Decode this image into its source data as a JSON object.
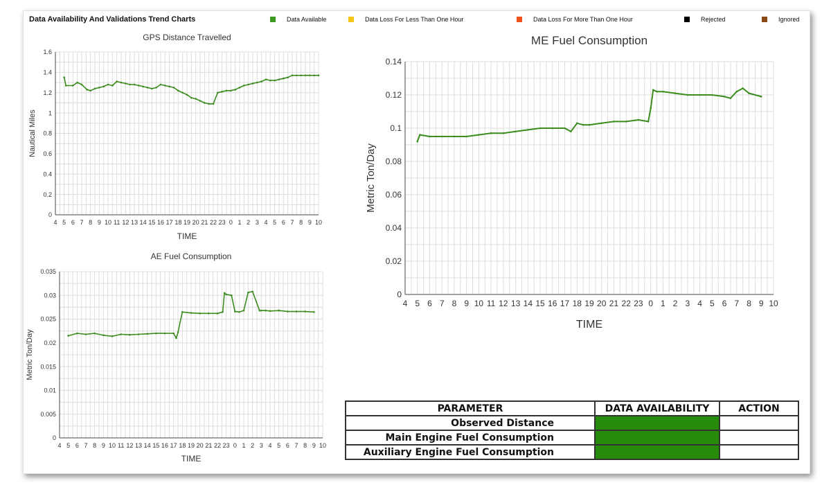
{
  "header": {
    "title": "Data Availability And Validations Trend Charts"
  },
  "legend": [
    {
      "label": "Data Available",
      "color": "#3c9a1f",
      "swatch_name": "data-available-swatch"
    },
    {
      "label": "Data Loss For Less Than One Hour",
      "color": "#f5c518",
      "swatch_name": "data-loss-short-swatch"
    },
    {
      "label": "Data Loss For More Than One Hour",
      "color": "#f0521e",
      "swatch_name": "data-loss-long-swatch"
    },
    {
      "label": "Rejected",
      "color": "#000000",
      "swatch_name": "rejected-swatch"
    },
    {
      "label": "Ignored",
      "color": "#8b4a1c",
      "swatch_name": "ignored-swatch"
    }
  ],
  "chart_data": [
    {
      "id": "gps",
      "type": "line",
      "title": "GPS Distance Travelled",
      "xlabel": "TIME",
      "ylabel": "Nautical Miles",
      "ylim": [
        0,
        1.6
      ],
      "yticks": [
        0,
        0.2,
        0.4,
        0.6,
        0.8,
        1,
        1.2,
        1.4,
        1.6
      ],
      "ytick_labels": [
        "0",
        "0.2",
        "0.4",
        "0.6",
        "0.8",
        "1",
        "1.2",
        "1.4",
        "1.6"
      ],
      "xtick_labels": [
        "4",
        "5",
        "6",
        "7",
        "8",
        "9",
        "10",
        "11",
        "12",
        "13",
        "14",
        "15",
        "16",
        "17",
        "18",
        "19",
        "20",
        "21",
        "22",
        "23",
        "0",
        "1",
        "2",
        "3",
        "4",
        "5",
        "6",
        "7",
        "8",
        "9",
        "10"
      ],
      "grid": true,
      "line_color": "#3c8c1e",
      "series": [
        {
          "x": [
            1,
            1.2,
            2,
            2.5,
            3,
            3.6,
            4,
            4.5,
            5,
            5.5,
            6,
            6.5,
            7,
            7.5,
            8,
            8.5,
            9,
            9.5,
            10,
            10.5,
            11,
            11.5,
            12,
            12.5,
            13,
            13.5,
            14,
            14.5,
            15,
            15.5,
            16,
            16.5,
            17,
            17.5,
            18,
            18.5,
            19,
            19.5,
            20,
            20.5,
            21,
            21.5,
            22,
            22.5,
            23,
            23.5,
            24,
            24.5,
            25,
            25.5,
            26,
            26.5,
            27,
            27.5,
            28,
            28.5,
            29,
            29.5,
            30
          ],
          "y": [
            1.35,
            1.27,
            1.27,
            1.3,
            1.28,
            1.23,
            1.22,
            1.24,
            1.25,
            1.26,
            1.28,
            1.27,
            1.31,
            1.3,
            1.29,
            1.28,
            1.28,
            1.27,
            1.26,
            1.25,
            1.24,
            1.25,
            1.28,
            1.27,
            1.26,
            1.25,
            1.22,
            1.2,
            1.18,
            1.15,
            1.14,
            1.12,
            1.1,
            1.09,
            1.09,
            1.2,
            1.21,
            1.22,
            1.22,
            1.23,
            1.25,
            1.27,
            1.28,
            1.29,
            1.3,
            1.31,
            1.33,
            1.32,
            1.32,
            1.33,
            1.34,
            1.35,
            1.37,
            1.37,
            1.37,
            1.37,
            1.37,
            1.37,
            1.37
          ]
        }
      ]
    },
    {
      "id": "ae",
      "type": "line",
      "title": "AE Fuel Consumption",
      "xlabel": "TIME",
      "ylabel": "Metric Ton/Day",
      "ylim": [
        0,
        0.035
      ],
      "yticks": [
        0,
        0.005,
        0.01,
        0.015,
        0.02,
        0.025,
        0.03,
        0.035
      ],
      "ytick_labels": [
        "0",
        "0.005",
        "0.01",
        "0.015",
        "0.02",
        "0.025",
        "0.03",
        "0.035"
      ],
      "xtick_labels": [
        "4",
        "5",
        "6",
        "7",
        "8",
        "9",
        "10",
        "11",
        "12",
        "13",
        "14",
        "15",
        "16",
        "17",
        "18",
        "19",
        "20",
        "21",
        "22",
        "23",
        "0",
        "1",
        "2",
        "3",
        "4",
        "5",
        "6",
        "7",
        "8",
        "9",
        "10"
      ],
      "grid": true,
      "line_color": "#3c8c1e",
      "series": [
        {
          "x": [
            1,
            2,
            3,
            4,
            5,
            6,
            7,
            8,
            9,
            10,
            11,
            12,
            13,
            13.3,
            13.5,
            14,
            15,
            16,
            17,
            18,
            18.6,
            18.8,
            19,
            19.6,
            20,
            20.5,
            21,
            21.5,
            22,
            22.8,
            23,
            23.5,
            24,
            25,
            26,
            27,
            28,
            29
          ],
          "y": [
            0.0215,
            0.022,
            0.0218,
            0.022,
            0.0216,
            0.0214,
            0.0218,
            0.0217,
            0.0218,
            0.0219,
            0.022,
            0.022,
            0.022,
            0.021,
            0.0222,
            0.0265,
            0.0263,
            0.0262,
            0.0262,
            0.0262,
            0.0265,
            0.0305,
            0.0302,
            0.03,
            0.0266,
            0.0265,
            0.0268,
            0.0306,
            0.0308,
            0.0268,
            0.0268,
            0.0268,
            0.0267,
            0.0268,
            0.0266,
            0.0266,
            0.0266,
            0.0265
          ]
        }
      ]
    },
    {
      "id": "me",
      "type": "line",
      "title": "ME Fuel Consumption",
      "xlabel": "TIME",
      "ylabel": "Metric Ton/Day",
      "ylim": [
        0,
        0.14
      ],
      "yticks": [
        0,
        0.02,
        0.04,
        0.06,
        0.08,
        0.1,
        0.12,
        0.14
      ],
      "ytick_labels": [
        "0",
        "0.02",
        "0.04",
        "0.06",
        "0.08",
        "0.1",
        "0.12",
        "0.14"
      ],
      "xtick_labels": [
        "4",
        "5",
        "6",
        "7",
        "8",
        "9",
        "10",
        "11",
        "12",
        "13",
        "14",
        "15",
        "16",
        "17",
        "18",
        "19",
        "20",
        "21",
        "22",
        "23",
        "0",
        "1",
        "2",
        "3",
        "4",
        "5",
        "6",
        "7",
        "8",
        "9",
        "10"
      ],
      "grid": true,
      "line_color": "#3c8c1e",
      "series": [
        {
          "x": [
            1,
            1.2,
            2,
            3,
            4,
            5,
            6,
            7,
            8,
            9,
            10,
            11,
            12,
            13,
            13.5,
            14,
            14.5,
            15,
            16,
            17,
            18,
            19,
            19.8,
            20,
            20.2,
            20.5,
            21,
            22,
            23,
            24,
            25,
            26,
            26.5,
            27,
            27.5,
            28,
            29
          ],
          "y": [
            0.092,
            0.096,
            0.095,
            0.095,
            0.095,
            0.095,
            0.096,
            0.097,
            0.097,
            0.098,
            0.099,
            0.1,
            0.1,
            0.1,
            0.098,
            0.103,
            0.102,
            0.102,
            0.103,
            0.104,
            0.104,
            0.105,
            0.104,
            0.112,
            0.123,
            0.122,
            0.122,
            0.121,
            0.12,
            0.12,
            0.12,
            0.119,
            0.118,
            0.122,
            0.124,
            0.121,
            0.119
          ]
        }
      ]
    }
  ],
  "table": {
    "headers": [
      "PARAMETER",
      "DATA AVAILABILITY",
      "ACTION"
    ],
    "rows": [
      {
        "parameter": "Observed Distance",
        "action": ""
      },
      {
        "parameter": "Main Engine Fuel Consumption",
        "action": ""
      },
      {
        "parameter": "Auxiliary Engine Fuel Consumption",
        "action": ""
      }
    ]
  }
}
